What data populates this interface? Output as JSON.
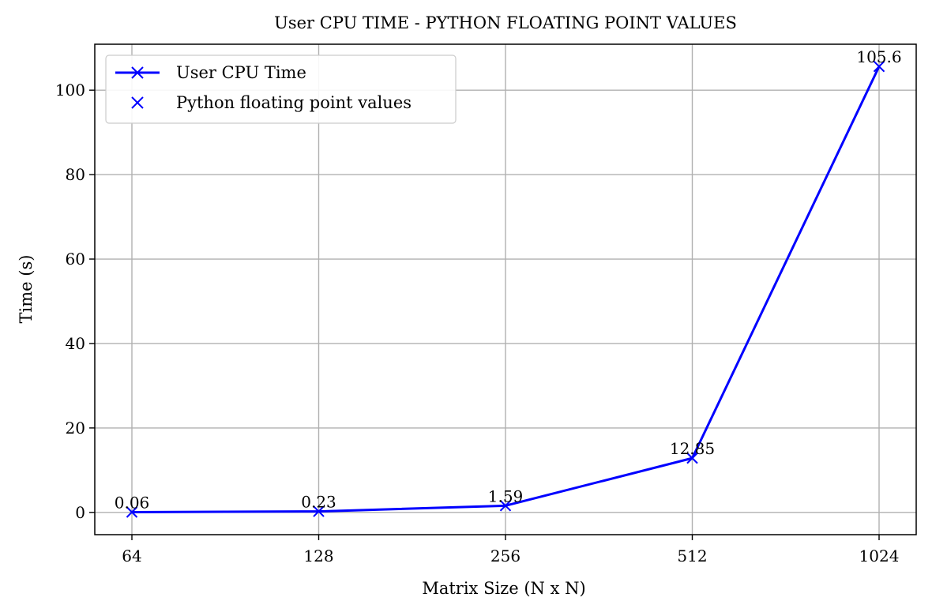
{
  "chart_data": {
    "type": "line",
    "title": "User CPU TIME - PYTHON FLOATING POINT VALUES",
    "xlabel": "Matrix Size (N x N)",
    "ylabel": "Time (s)",
    "categories": [
      "64",
      "128",
      "256",
      "512",
      "1024"
    ],
    "series": [
      {
        "name": "User CPU Time",
        "values": [
          0.06,
          0.23,
          1.59,
          12.85,
          105.6
        ],
        "marker": "x",
        "color": "#0000ff"
      }
    ],
    "marker_legend": "Python floating point values",
    "data_labels": [
      "0.06",
      "0.23",
      "1.59",
      "12.85",
      "105.6"
    ],
    "ylim": [
      -5.27,
      110.88
    ],
    "yticks": [
      0,
      20,
      40,
      60,
      80,
      100
    ],
    "grid": true,
    "legend_position": "upper left"
  }
}
